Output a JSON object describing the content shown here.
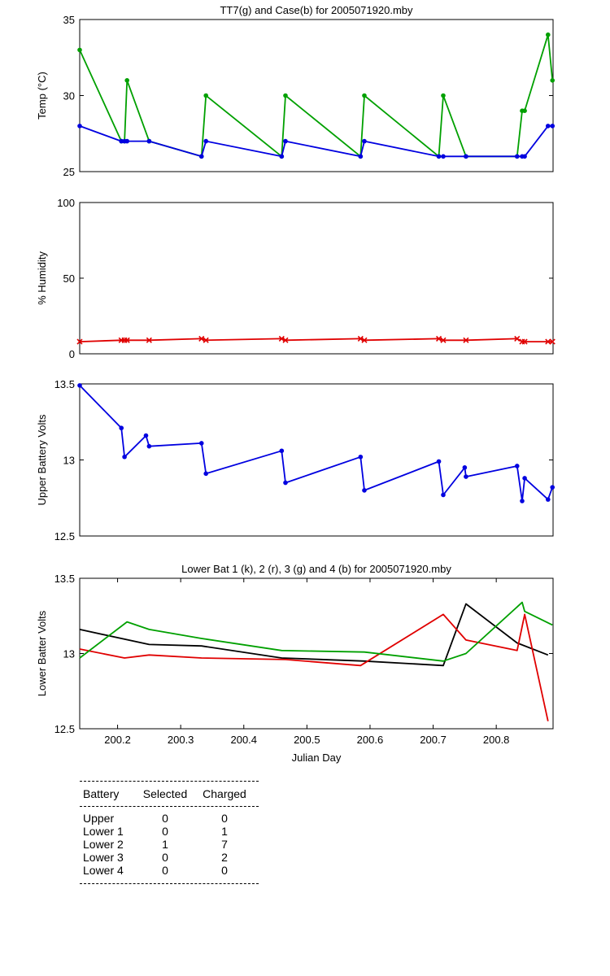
{
  "chart_data": [
    {
      "type": "line",
      "title": "TT7(g) and Case(b) for 2005071920.mby",
      "xlabel": "",
      "ylabel": "Temp  (°C)",
      "xlim": [
        200.14,
        200.89
      ],
      "ylim": [
        25,
        35
      ],
      "yticks": [
        25,
        30,
        35
      ],
      "series": [
        {
          "color": "#00a000",
          "marker": "*",
          "points": [
            [
              200.14,
              33
            ],
            [
              200.206,
              27
            ],
            [
              200.211,
              27
            ],
            [
              200.215,
              31
            ],
            [
              200.25,
              27
            ],
            [
              200.333,
              26
            ],
            [
              200.34,
              30
            ],
            [
              200.46,
              26
            ],
            [
              200.466,
              30
            ],
            [
              200.585,
              26
            ],
            [
              200.591,
              30
            ],
            [
              200.709,
              26
            ],
            [
              200.716,
              30
            ],
            [
              200.752,
              26
            ],
            [
              200.833,
              26
            ],
            [
              200.841,
              29
            ],
            [
              200.845,
              29
            ],
            [
              200.882,
              34
            ],
            [
              200.889,
              31
            ]
          ]
        },
        {
          "color": "#0000e0",
          "marker": "*",
          "points": [
            [
              200.14,
              28
            ],
            [
              200.206,
              27
            ],
            [
              200.211,
              27
            ],
            [
              200.215,
              27
            ],
            [
              200.25,
              27
            ],
            [
              200.333,
              26
            ],
            [
              200.34,
              27
            ],
            [
              200.46,
              26
            ],
            [
              200.466,
              27
            ],
            [
              200.585,
              26
            ],
            [
              200.591,
              27
            ],
            [
              200.709,
              26
            ],
            [
              200.716,
              26
            ],
            [
              200.752,
              26
            ],
            [
              200.833,
              26
            ],
            [
              200.841,
              26
            ],
            [
              200.845,
              26
            ],
            [
              200.882,
              28
            ],
            [
              200.889,
              28
            ]
          ]
        }
      ]
    },
    {
      "type": "line",
      "title": "",
      "xlabel": "",
      "ylabel": "% Humidity",
      "xlim": [
        200.14,
        200.89
      ],
      "ylim": [
        0,
        100
      ],
      "yticks": [
        0,
        50,
        100
      ],
      "series": [
        {
          "color": "#e00000",
          "marker": "x",
          "points": [
            [
              200.14,
              8
            ],
            [
              200.206,
              9
            ],
            [
              200.211,
              9
            ],
            [
              200.215,
              9
            ],
            [
              200.25,
              9
            ],
            [
              200.333,
              10
            ],
            [
              200.34,
              9
            ],
            [
              200.46,
              10
            ],
            [
              200.466,
              9
            ],
            [
              200.585,
              10
            ],
            [
              200.591,
              9
            ],
            [
              200.709,
              10
            ],
            [
              200.716,
              9
            ],
            [
              200.752,
              9
            ],
            [
              200.833,
              10
            ],
            [
              200.841,
              8
            ],
            [
              200.845,
              8
            ],
            [
              200.882,
              8
            ],
            [
              200.889,
              8
            ]
          ]
        }
      ]
    },
    {
      "type": "line",
      "title": "",
      "xlabel": "",
      "ylabel": "Upper Battery Volts",
      "xlim": [
        200.14,
        200.89
      ],
      "ylim": [
        12.5,
        13.5
      ],
      "yticks": [
        12.5,
        13,
        13.5
      ],
      "series": [
        {
          "color": "#0000e0",
          "marker": "*",
          "points": [
            [
              200.14,
              13.49
            ],
            [
              200.206,
              13.21
            ],
            [
              200.211,
              13.02
            ],
            [
              200.245,
              13.16
            ],
            [
              200.25,
              13.09
            ],
            [
              200.333,
              13.11
            ],
            [
              200.34,
              12.91
            ],
            [
              200.46,
              13.06
            ],
            [
              200.466,
              12.85
            ],
            [
              200.585,
              13.02
            ],
            [
              200.591,
              12.8
            ],
            [
              200.709,
              12.99
            ],
            [
              200.716,
              12.77
            ],
            [
              200.75,
              12.95
            ],
            [
              200.752,
              12.89
            ],
            [
              200.833,
              12.96
            ],
            [
              200.841,
              12.73
            ],
            [
              200.845,
              12.88
            ],
            [
              200.882,
              12.74
            ],
            [
              200.889,
              12.82
            ]
          ]
        }
      ]
    },
    {
      "type": "line",
      "title": "Lower Bat 1 (k), 2 (r), 3 (g) and 4 (b) for 2005071920.mby",
      "xlabel": "Julian Day",
      "ylabel": "Lower Batter Volts",
      "xlim": [
        200.14,
        200.89
      ],
      "ylim": [
        12.5,
        13.5
      ],
      "yticks": [
        12.5,
        13,
        13.5
      ],
      "xticks": [
        200.2,
        200.3,
        200.4,
        200.5,
        200.6,
        200.7,
        200.8
      ],
      "series": [
        {
          "color": "#000000",
          "points": [
            [
              200.14,
              13.16
            ],
            [
              200.25,
              13.06
            ],
            [
              200.333,
              13.05
            ],
            [
              200.46,
              12.97
            ],
            [
              200.591,
              12.95
            ],
            [
              200.716,
              12.92
            ],
            [
              200.752,
              13.33
            ],
            [
              200.833,
              13.07
            ],
            [
              200.882,
              12.99
            ]
          ]
        },
        {
          "color": "#e00000",
          "points": [
            [
              200.14,
              13.03
            ],
            [
              200.211,
              12.97
            ],
            [
              200.25,
              12.99
            ],
            [
              200.333,
              12.97
            ],
            [
              200.466,
              12.96
            ],
            [
              200.585,
              12.92
            ],
            [
              200.716,
              13.26
            ],
            [
              200.752,
              13.09
            ],
            [
              200.833,
              13.02
            ],
            [
              200.845,
              13.26
            ],
            [
              200.882,
              12.55
            ]
          ]
        },
        {
          "color": "#00a000",
          "points": [
            [
              200.14,
              12.97
            ],
            [
              200.215,
              13.21
            ],
            [
              200.25,
              13.16
            ],
            [
              200.333,
              13.1
            ],
            [
              200.46,
              13.02
            ],
            [
              200.591,
              13.01
            ],
            [
              200.716,
              12.95
            ],
            [
              200.752,
              13.0
            ],
            [
              200.841,
              13.34
            ],
            [
              200.845,
              13.28
            ],
            [
              200.889,
              13.19
            ]
          ]
        }
      ]
    }
  ],
  "battery_table": {
    "headers": [
      "Battery",
      "Selected",
      "Charged"
    ],
    "rows": [
      {
        "battery": "Upper",
        "selected": "0",
        "charged": "0"
      },
      {
        "battery": "Lower 1",
        "selected": "0",
        "charged": "1"
      },
      {
        "battery": "Lower 2",
        "selected": "1",
        "charged": "7"
      },
      {
        "battery": "Lower 3",
        "selected": "0",
        "charged": "2"
      },
      {
        "battery": "Lower 4",
        "selected": "0",
        "charged": "0"
      }
    ]
  }
}
